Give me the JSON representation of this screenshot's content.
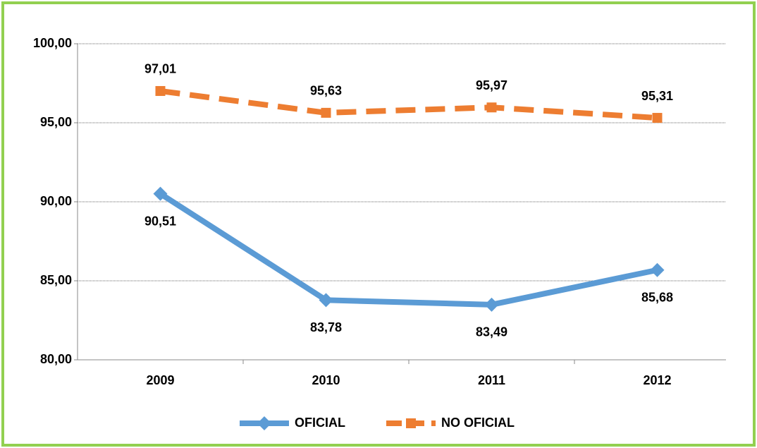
{
  "chart_data": {
    "type": "line",
    "categories": [
      "2009",
      "2010",
      "2011",
      "2012"
    ],
    "series": [
      {
        "name": "OFICIAL",
        "color": "#5b9bd5",
        "dash": false,
        "marker": "diamond",
        "values": [
          90.51,
          83.78,
          83.49,
          85.68
        ],
        "value_labels": [
          "90,51",
          "83,78",
          "83,49",
          "85,68"
        ]
      },
      {
        "name": "NO OFICIAL",
        "color": "#ed7d31",
        "dash": true,
        "marker": "square",
        "values": [
          97.01,
          95.63,
          95.97,
          95.31
        ],
        "value_labels": [
          "97,01",
          "95,63",
          "95,97",
          "95,31"
        ]
      }
    ],
    "ylim": [
      80,
      100
    ],
    "yticks": [
      {
        "value": 80,
        "label": "80,00"
      },
      {
        "value": 85,
        "label": "85,00"
      },
      {
        "value": 90,
        "label": "90,00"
      },
      {
        "value": 95,
        "label": "95,00"
      },
      {
        "value": 100,
        "label": "100,00"
      }
    ],
    "grid": true,
    "legend": "bottom"
  }
}
